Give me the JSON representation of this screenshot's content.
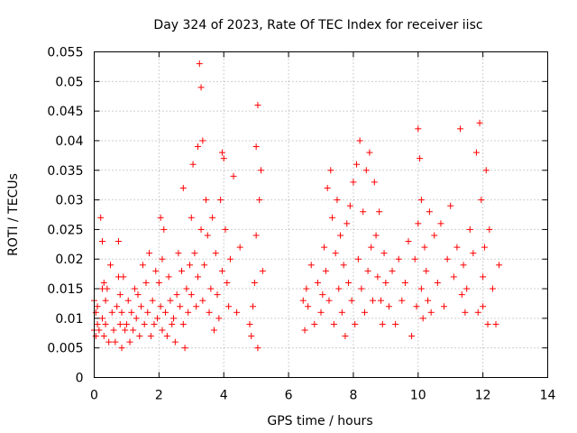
{
  "chart_data": {
    "type": "scatter",
    "title": "Day 324 of 2023, Rate Of TEC Index for receiver iisc",
    "xlabel": "GPS time / hours",
    "ylabel": "ROTI / TECUs",
    "xlim": [
      0,
      14
    ],
    "ylim": [
      0,
      0.055
    ],
    "xticks": [
      0,
      2,
      4,
      6,
      8,
      10,
      12,
      14
    ],
    "yticks": [
      0,
      0.005,
      0.01,
      0.015,
      0.02,
      0.025,
      0.03,
      0.035,
      0.04,
      0.045,
      0.05,
      0.055
    ],
    "ytick_labels": [
      "0",
      "0.005",
      "0.01",
      "0.015",
      "0.02",
      "0.025",
      "0.03",
      "0.035",
      "0.04",
      "0.045",
      "0.05",
      "0.055"
    ],
    "grid": true,
    "marker": "plus",
    "color": "#ff0000",
    "series": [
      {
        "name": "ROTI",
        "x": [
          0.0,
          0.0,
          0.05,
          0.05,
          0.1,
          0.1,
          0.15,
          0.2,
          0.25,
          0.25,
          0.25,
          0.3,
          0.3,
          0.35,
          0.35,
          0.4,
          0.45,
          0.5,
          0.55,
          0.6,
          0.65,
          0.7,
          0.75,
          0.75,
          0.8,
          0.8,
          0.85,
          0.85,
          0.9,
          0.95,
          1.0,
          1.05,
          1.1,
          1.15,
          1.2,
          1.25,
          1.3,
          1.35,
          1.4,
          1.45,
          1.5,
          1.55,
          1.6,
          1.65,
          1.7,
          1.75,
          1.8,
          1.85,
          1.9,
          1.95,
          2.0,
          2.05,
          2.05,
          2.1,
          2.1,
          2.15,
          2.2,
          2.25,
          2.3,
          2.35,
          2.4,
          2.45,
          2.5,
          2.55,
          2.6,
          2.65,
          2.7,
          2.75,
          2.75,
          2.8,
          2.85,
          2.9,
          2.95,
          3.0,
          3.0,
          3.05,
          3.1,
          3.15,
          3.2,
          3.2,
          3.25,
          3.3,
          3.3,
          3.35,
          3.35,
          3.4,
          3.45,
          3.5,
          3.55,
          3.6,
          3.65,
          3.7,
          3.75,
          3.8,
          3.85,
          3.9,
          3.95,
          3.95,
          4.0,
          4.05,
          4.1,
          4.15,
          4.2,
          4.3,
          4.4,
          4.5,
          4.8,
          4.85,
          4.9,
          4.95,
          5.0,
          5.0,
          5.05,
          5.05,
          5.1,
          5.15,
          5.2,
          6.45,
          6.5,
          6.55,
          6.6,
          6.7,
          6.8,
          6.9,
          7.0,
          7.05,
          7.1,
          7.15,
          7.2,
          7.25,
          7.3,
          7.35,
          7.4,
          7.45,
          7.5,
          7.55,
          7.6,
          7.65,
          7.7,
          7.75,
          7.8,
          7.85,
          7.9,
          7.95,
          8.0,
          8.05,
          8.1,
          8.15,
          8.2,
          8.25,
          8.3,
          8.35,
          8.4,
          8.45,
          8.5,
          8.55,
          8.6,
          8.65,
          8.7,
          8.75,
          8.8,
          8.85,
          8.9,
          8.95,
          9.0,
          9.1,
          9.2,
          9.3,
          9.4,
          9.5,
          9.6,
          9.7,
          9.8,
          9.9,
          9.95,
          10.0,
          10.0,
          10.05,
          10.1,
          10.1,
          10.15,
          10.2,
          10.25,
          10.3,
          10.35,
          10.4,
          10.5,
          10.6,
          10.7,
          10.8,
          10.9,
          11.0,
          11.1,
          11.2,
          11.3,
          11.35,
          11.4,
          11.45,
          11.5,
          11.6,
          11.7,
          11.8,
          11.85,
          11.9,
          11.95,
          12.0,
          12.0,
          12.05,
          12.1,
          12.15,
          12.2,
          12.3,
          12.4,
          12.5
        ],
        "y": [
          0.013,
          0.008,
          0.011,
          0.007,
          0.009,
          0.012,
          0.008,
          0.027,
          0.015,
          0.023,
          0.01,
          0.016,
          0.007,
          0.009,
          0.013,
          0.015,
          0.006,
          0.019,
          0.011,
          0.008,
          0.006,
          0.012,
          0.023,
          0.017,
          0.014,
          0.009,
          0.005,
          0.011,
          0.017,
          0.008,
          0.009,
          0.013,
          0.006,
          0.011,
          0.008,
          0.015,
          0.01,
          0.014,
          0.007,
          0.012,
          0.019,
          0.009,
          0.016,
          0.011,
          0.021,
          0.007,
          0.013,
          0.009,
          0.018,
          0.01,
          0.016,
          0.027,
          0.012,
          0.02,
          0.008,
          0.025,
          0.011,
          0.007,
          0.017,
          0.013,
          0.009,
          0.01,
          0.006,
          0.014,
          0.021,
          0.012,
          0.018,
          0.032,
          0.009,
          0.005,
          0.015,
          0.011,
          0.019,
          0.027,
          0.014,
          0.036,
          0.021,
          0.012,
          0.039,
          0.017,
          0.053,
          0.049,
          0.025,
          0.04,
          0.013,
          0.019,
          0.03,
          0.024,
          0.011,
          0.015,
          0.027,
          0.008,
          0.021,
          0.014,
          0.01,
          0.03,
          0.038,
          0.018,
          0.037,
          0.025,
          0.016,
          0.012,
          0.02,
          0.034,
          0.011,
          0.022,
          0.009,
          0.007,
          0.012,
          0.016,
          0.024,
          0.039,
          0.046,
          0.005,
          0.03,
          0.035,
          0.018,
          0.013,
          0.008,
          0.015,
          0.012,
          0.019,
          0.009,
          0.016,
          0.011,
          0.014,
          0.022,
          0.018,
          0.032,
          0.013,
          0.035,
          0.027,
          0.009,
          0.021,
          0.03,
          0.015,
          0.024,
          0.011,
          0.019,
          0.007,
          0.026,
          0.016,
          0.029,
          0.013,
          0.033,
          0.009,
          0.036,
          0.02,
          0.04,
          0.015,
          0.028,
          0.011,
          0.035,
          0.018,
          0.038,
          0.022,
          0.013,
          0.033,
          0.024,
          0.017,
          0.028,
          0.013,
          0.009,
          0.021,
          0.016,
          0.012,
          0.018,
          0.009,
          0.02,
          0.013,
          0.016,
          0.023,
          0.007,
          0.02,
          0.012,
          0.042,
          0.026,
          0.037,
          0.015,
          0.03,
          0.01,
          0.022,
          0.018,
          0.013,
          0.028,
          0.011,
          0.024,
          0.016,
          0.026,
          0.012,
          0.02,
          0.029,
          0.017,
          0.022,
          0.042,
          0.014,
          0.019,
          0.011,
          0.015,
          0.025,
          0.021,
          0.038,
          0.011,
          0.043,
          0.03,
          0.012,
          0.017,
          0.022,
          0.035,
          0.009,
          0.025,
          0.015,
          0.009,
          0.019
        ]
      }
    ]
  }
}
